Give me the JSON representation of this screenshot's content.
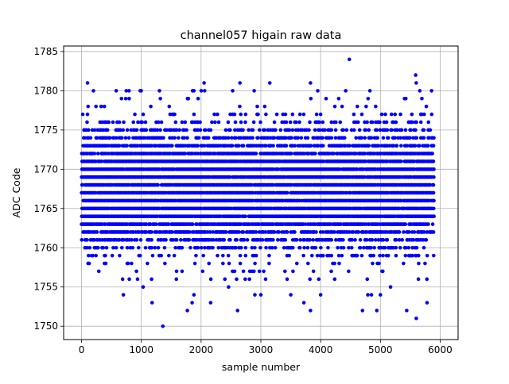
{
  "chart_data": {
    "type": "scatter",
    "title": "channel057 higain raw data",
    "xlabel": "sample number",
    "ylabel": "ADC Code",
    "xlim": [
      -300,
      6300
    ],
    "ylim": [
      1748.3,
      1785.7
    ],
    "xticks": [
      0,
      1000,
      2000,
      3000,
      4000,
      5000,
      6000
    ],
    "yticks": [
      1750,
      1755,
      1760,
      1765,
      1770,
      1775,
      1780,
      1785
    ],
    "grid": true,
    "marker": "circle",
    "series": [
      {
        "color": "#0000ff",
        "x_range": [
          0,
          5900
        ],
        "dense_band": [
          1761,
          1774
        ],
        "sparse_band": [
          1756,
          1780
        ],
        "outliers": [
          {
            "x": 1360,
            "y": 1750
          },
          {
            "x": 5600,
            "y": 1751
          },
          {
            "x": 5440,
            "y": 1752
          },
          {
            "x": 1770,
            "y": 1752
          },
          {
            "x": 2610,
            "y": 1752
          },
          {
            "x": 3830,
            "y": 1752
          },
          {
            "x": 4700,
            "y": 1752
          },
          {
            "x": 4940,
            "y": 1752
          },
          {
            "x": 1180,
            "y": 1753
          },
          {
            "x": 1850,
            "y": 1753
          },
          {
            "x": 2160,
            "y": 1753
          },
          {
            "x": 3720,
            "y": 1753
          },
          {
            "x": 5780,
            "y": 1753
          },
          {
            "x": 700,
            "y": 1754
          },
          {
            "x": 1880,
            "y": 1754
          },
          {
            "x": 2900,
            "y": 1754
          },
          {
            "x": 3000,
            "y": 1754
          },
          {
            "x": 3500,
            "y": 1754
          },
          {
            "x": 4000,
            "y": 1754
          },
          {
            "x": 4790,
            "y": 1754
          },
          {
            "x": 4850,
            "y": 1754
          },
          {
            "x": 5000,
            "y": 1754
          },
          {
            "x": 1030,
            "y": 1755
          },
          {
            "x": 2460,
            "y": 1755
          },
          {
            "x": 5170,
            "y": 1755
          },
          {
            "x": 100,
            "y": 1781
          },
          {
            "x": 2050,
            "y": 1781
          },
          {
            "x": 2650,
            "y": 1781
          },
          {
            "x": 3150,
            "y": 1781
          },
          {
            "x": 3830,
            "y": 1781
          },
          {
            "x": 5600,
            "y": 1781
          },
          {
            "x": 5590,
            "y": 1782
          },
          {
            "x": 4480,
            "y": 1784
          }
        ]
      }
    ]
  }
}
